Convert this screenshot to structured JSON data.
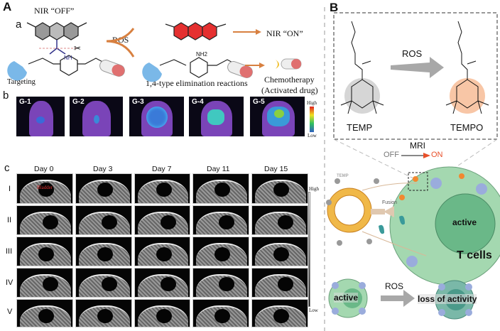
{
  "panelA": {
    "letter": "A",
    "sub_a": "a",
    "nir_off": "NIR “OFF”",
    "ros": "ROS",
    "nir_on": "NIR “ON”",
    "targeting": "Targeting",
    "elimination": "1,4-type elimination reactions",
    "chemo": "Chemotherapy",
    "activated": "(Activated drug)",
    "drug": "Drug",
    "nh": "NH",
    "nh2": "NH2",
    "s": "S",
    "n": "N"
  },
  "panelb": {
    "letter": "b",
    "groups": [
      "G-1",
      "G-2",
      "G-3",
      "G-4",
      "G-5"
    ],
    "colorbar": {
      "high": "High",
      "low": "Low"
    },
    "intensity": [
      0.15,
      0.2,
      0.45,
      0.55,
      0.65
    ]
  },
  "panelc": {
    "letter": "c",
    "days": [
      "Day 0",
      "Day 3",
      "Day 7",
      "Day 11",
      "Day 15"
    ],
    "rows": [
      "I",
      "II",
      "III",
      "IV",
      "V"
    ],
    "bladder_label": "Bladder",
    "colorbar": {
      "high": "High",
      "low": "Low"
    }
  },
  "panelB": {
    "letter": "B",
    "temp": "TEMP",
    "tempo": "TEMPO",
    "ros": "ROS",
    "mri": "MRI",
    "off": "OFF",
    "on": "ON",
    "temp_small": "TEMP",
    "fusion": "Fusion",
    "active": "active",
    "tcells": "T cells",
    "ros2": "ROS",
    "active2": "active",
    "loss": "loss of activity",
    "sh": "SH",
    "hs": "HS",
    "hn": "HN",
    "o": "O",
    "s": "S",
    "nh": "N",
    "colors": {
      "on": "#e8502a",
      "cell": "#8ccc9c",
      "nucleus": "#5aaa7a",
      "liposome": "#f0b848"
    }
  }
}
